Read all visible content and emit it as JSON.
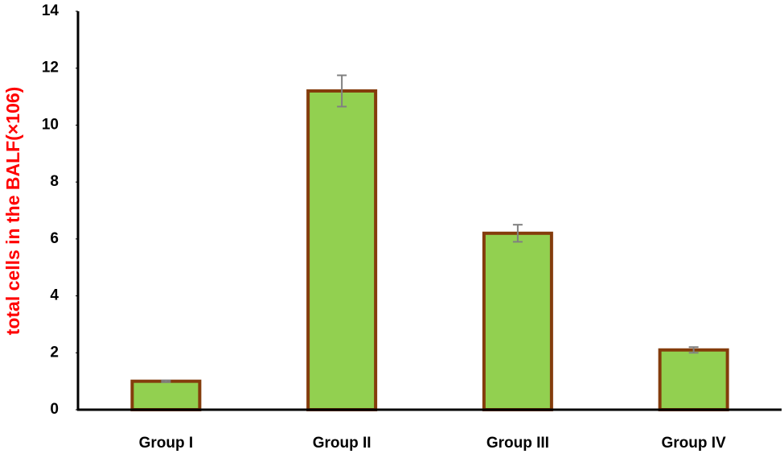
{
  "chart_data": {
    "type": "bar",
    "ylabel": "total cells in the BALF(×106)",
    "categories": [
      "Group I",
      "Group II",
      "Group III",
      "Group IV"
    ],
    "values": [
      1.0,
      11.2,
      6.2,
      2.1
    ],
    "errors": [
      0.03,
      0.55,
      0.3,
      0.1
    ],
    "color": "#92d050",
    "edgecolor": "#843c0c",
    "errorcolor": "#808080",
    "ylim": [
      0,
      14
    ],
    "yticks": [
      0,
      2,
      4,
      6,
      8,
      10,
      12,
      14
    ],
    "grid": false
  }
}
